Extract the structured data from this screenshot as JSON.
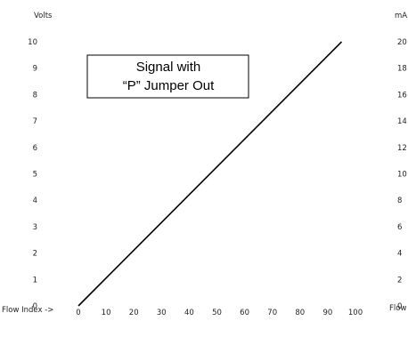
{
  "chart_data": {
    "type": "line",
    "left_axis": {
      "label": "Volts",
      "ticks": [
        "0",
        "1",
        "2",
        "3",
        "4",
        "5",
        "6",
        "7",
        "8",
        "9",
        "10"
      ],
      "range": [
        0,
        10
      ]
    },
    "right_axis": {
      "label": "mA",
      "ticks": [
        "0",
        "2",
        "4",
        "6",
        "8",
        "10",
        "12",
        "14",
        "16",
        "18",
        "20"
      ],
      "range": [
        0,
        20
      ]
    },
    "x_axis": {
      "label": "Flow Index ->",
      "ticks": [
        "0",
        "10",
        "20",
        "30",
        "40",
        "50",
        "60",
        "70",
        "80",
        "90",
        "100"
      ],
      "range": [
        0,
        100
      ]
    },
    "x_axis_right_label": "Flow",
    "series": [
      {
        "x": [
          0,
          95
        ],
        "y": [
          0,
          10
        ],
        "color": "#000000"
      }
    ],
    "annotation": {
      "line1": "Signal with",
      "line2": "“P” Jumper Out"
    },
    "grid": false,
    "colors": {
      "line": "#000000",
      "text": "#222222",
      "background": "#ffffff"
    }
  }
}
